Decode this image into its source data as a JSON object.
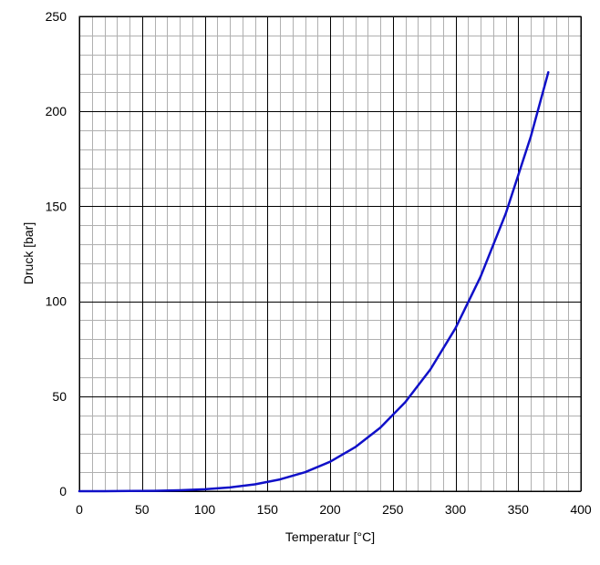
{
  "chart_data": {
    "type": "line",
    "title": "",
    "xlabel": "Temperatur [°C]",
    "ylabel": "Druck [bar]",
    "xlim": [
      0,
      400
    ],
    "ylim": [
      0,
      250
    ],
    "x_major_ticks": [
      0,
      50,
      100,
      150,
      200,
      250,
      300,
      350,
      400
    ],
    "y_major_ticks": [
      0,
      50,
      100,
      150,
      200,
      250
    ],
    "x_minor_step": 10,
    "y_minor_step": 10,
    "grid": "major and minor",
    "legend": "none",
    "colors": {
      "line": "#1010c8",
      "major_grid": "#000000",
      "minor_grid": "#b0b0b0",
      "background": "#ffffff"
    },
    "series": [
      {
        "x": [
          0,
          20,
          40,
          60,
          80,
          100,
          120,
          140,
          160,
          180,
          200,
          220,
          240,
          260,
          280,
          300,
          320,
          340,
          360,
          374
        ],
        "y": [
          0.0061,
          0.023,
          0.074,
          0.2,
          0.47,
          1.01,
          1.99,
          3.61,
          6.18,
          10.0,
          15.5,
          23.2,
          33.4,
          46.9,
          64.1,
          85.8,
          112.9,
          146.0,
          186.5,
          220.6
        ]
      }
    ]
  }
}
